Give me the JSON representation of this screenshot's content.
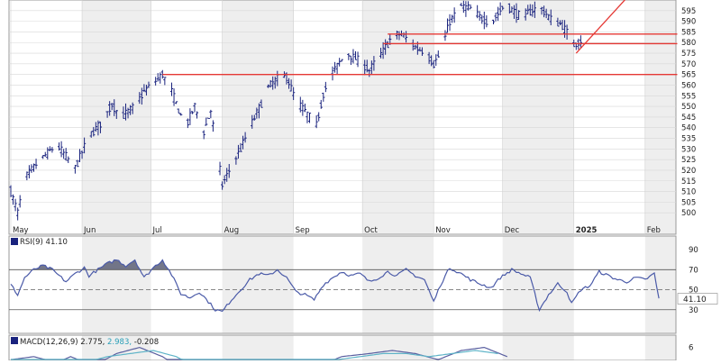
{
  "chart_data": [
    {
      "type": "ohlc",
      "panel": "price",
      "title": "",
      "ylim": [
        495,
        600
      ],
      "y_ticks": [
        500,
        505,
        510,
        515,
        520,
        525,
        530,
        535,
        540,
        545,
        550,
        555,
        560,
        565,
        570,
        575,
        580,
        585,
        590,
        595
      ],
      "x_labels": [
        {
          "label": "May",
          "day": 0
        },
        {
          "label": "Jun",
          "day": 31
        },
        {
          "label": "Jul",
          "day": 61
        },
        {
          "label": "Aug",
          "day": 92
        },
        {
          "label": "Sep",
          "day": 123
        },
        {
          "label": "Oct",
          "day": 153
        },
        {
          "label": "Nov",
          "day": 184
        },
        {
          "label": "Dec",
          "day": 214
        },
        {
          "label": "2025",
          "day": 245
        },
        {
          "label": "Feb",
          "day": 276
        }
      ],
      "bar_color": "#1a237e",
      "anchors": [
        [
          0,
          510
        ],
        [
          3,
          500
        ],
        [
          6,
          516
        ],
        [
          12,
          524
        ],
        [
          20,
          532
        ],
        [
          28,
          521
        ],
        [
          34,
          536
        ],
        [
          40,
          543
        ],
        [
          44,
          551
        ],
        [
          48,
          545
        ],
        [
          54,
          550
        ],
        [
          58,
          557
        ],
        [
          66,
          565
        ],
        [
          70,
          557
        ],
        [
          76,
          540
        ],
        [
          80,
          550
        ],
        [
          84,
          538
        ],
        [
          87,
          548
        ],
        [
          92,
          513
        ],
        [
          96,
          522
        ],
        [
          100,
          530
        ],
        [
          104,
          540
        ],
        [
          108,
          549
        ],
        [
          112,
          559
        ],
        [
          116,
          563
        ],
        [
          120,
          564
        ],
        [
          124,
          553
        ],
        [
          130,
          545
        ],
        [
          133,
          541
        ],
        [
          136,
          556
        ],
        [
          140,
          566
        ],
        [
          146,
          575
        ],
        [
          152,
          571
        ],
        [
          156,
          567
        ],
        [
          162,
          576
        ],
        [
          166,
          583
        ],
        [
          170,
          584
        ],
        [
          174,
          580
        ],
        [
          177,
          577
        ],
        [
          180,
          576
        ],
        [
          184,
          570
        ],
        [
          187,
          575
        ],
        [
          191,
          590
        ],
        [
          196,
          597
        ],
        [
          200,
          596
        ],
        [
          204,
          592
        ],
        [
          209,
          589
        ],
        [
          215,
          598
        ],
        [
          222,
          592
        ],
        [
          230,
          597
        ],
        [
          235,
          591
        ],
        [
          240,
          588
        ],
        [
          243,
          583
        ],
        [
          245,
          579
        ],
        [
          248,
          581
        ]
      ],
      "reference_lines": [
        {
          "y": 565.0,
          "from_day": 66,
          "to_day": 290,
          "color": "#e53935"
        },
        {
          "y": 579.5,
          "from_day": 162,
          "to_day": 290,
          "color": "#e53935"
        },
        {
          "y": 584.0,
          "from_day": 164,
          "to_day": 290,
          "color": "#e53935"
        }
      ],
      "trend_line": {
        "from_day": 246,
        "from_y": 575,
        "to_day": 268,
        "to_y": 601,
        "color": "#e53935"
      }
    },
    {
      "type": "line",
      "panel": "rsi",
      "label": "RSI(9) 41.10",
      "value_label": "41.10",
      "ylim": [
        10,
        100
      ],
      "y_ticks": [
        30,
        50,
        70,
        90
      ],
      "y_tick_labels": [
        "30",
        "50",
        "70",
        "90"
      ],
      "overbought": 70,
      "oversold": 30,
      "midline": 50,
      "line_color": "#4a5aa8",
      "fill_color": "#5c5f75",
      "anchors": [
        [
          0,
          55
        ],
        [
          3,
          45
        ],
        [
          6,
          62
        ],
        [
          10,
          70
        ],
        [
          14,
          74
        ],
        [
          18,
          70
        ],
        [
          22,
          62
        ],
        [
          24,
          58
        ],
        [
          28,
          66
        ],
        [
          32,
          72
        ],
        [
          34,
          64
        ],
        [
          38,
          70
        ],
        [
          42,
          76
        ],
        [
          46,
          80
        ],
        [
          50,
          74
        ],
        [
          54,
          80
        ],
        [
          58,
          62
        ],
        [
          62,
          72
        ],
        [
          66,
          80
        ],
        [
          70,
          65
        ],
        [
          74,
          46
        ],
        [
          78,
          42
        ],
        [
          82,
          48
        ],
        [
          86,
          38
        ],
        [
          89,
          30
        ],
        [
          92,
          28
        ],
        [
          96,
          40
        ],
        [
          100,
          50
        ],
        [
          104,
          60
        ],
        [
          108,
          66
        ],
        [
          112,
          64
        ],
        [
          116,
          70
        ],
        [
          120,
          62
        ],
        [
          124,
          48
        ],
        [
          128,
          45
        ],
        [
          132,
          40
        ],
        [
          136,
          55
        ],
        [
          140,
          62
        ],
        [
          144,
          68
        ],
        [
          148,
          64
        ],
        [
          152,
          66
        ],
        [
          156,
          58
        ],
        [
          160,
          62
        ],
        [
          164,
          68
        ],
        [
          168,
          64
        ],
        [
          172,
          70
        ],
        [
          176,
          64
        ],
        [
          180,
          60
        ],
        [
          184,
          38
        ],
        [
          187,
          55
        ],
        [
          191,
          72
        ],
        [
          196,
          66
        ],
        [
          200,
          60
        ],
        [
          204,
          56
        ],
        [
          209,
          52
        ],
        [
          213,
          62
        ],
        [
          218,
          70
        ],
        [
          222,
          66
        ],
        [
          226,
          62
        ],
        [
          230,
          30
        ],
        [
          234,
          45
        ],
        [
          238,
          56
        ],
        [
          242,
          48
        ],
        [
          244,
          36
        ],
        [
          248,
          50
        ],
        [
          252,
          54
        ],
        [
          256,
          68
        ],
        [
          260,
          64
        ],
        [
          264,
          60
        ],
        [
          268,
          58
        ],
        [
          272,
          62
        ],
        [
          276,
          60
        ],
        [
          280,
          66
        ],
        [
          282,
          41
        ]
      ]
    },
    {
      "type": "line",
      "panel": "macd",
      "label": "MACD(12,26,9) 2.775, 2.983, -0.208",
      "label_parts": {
        "name": "MACD(12,26,9)",
        "macd": "2.775",
        "signal": "2.983",
        "hist": "-0.208"
      },
      "ylim": [
        -10,
        10
      ],
      "y_ticks": [
        6
      ],
      "y_tick_labels": [
        "6"
      ],
      "series": [
        {
          "color": "#5a5fa0",
          "anchors": [
            [
              0,
              2
            ],
            [
              10,
              3
            ],
            [
              20,
              1
            ],
            [
              26,
              3
            ],
            [
              36,
              0
            ],
            [
              46,
              4
            ],
            [
              56,
              6
            ],
            [
              66,
              3
            ],
            [
              74,
              -1
            ],
            [
              84,
              -4
            ],
            [
              92,
              -6
            ],
            [
              104,
              -2
            ],
            [
              116,
              1
            ],
            [
              124,
              0
            ],
            [
              134,
              0
            ],
            [
              144,
              3
            ],
            [
              156,
              4
            ],
            [
              166,
              5
            ],
            [
              176,
              4
            ],
            [
              186,
              2
            ],
            [
              196,
              5
            ],
            [
              206,
              6
            ],
            [
              216,
              3
            ]
          ]
        },
        {
          "color": "#5fb4c8",
          "anchors": [
            [
              0,
              1
            ],
            [
              12,
              2
            ],
            [
              22,
              2
            ],
            [
              32,
              1
            ],
            [
              42,
              3
            ],
            [
              52,
              4
            ],
            [
              62,
              5
            ],
            [
              72,
              3
            ],
            [
              82,
              -1
            ],
            [
              92,
              -3
            ],
            [
              102,
              -3
            ],
            [
              112,
              0
            ],
            [
              122,
              1
            ],
            [
              132,
              1
            ],
            [
              142,
              2
            ],
            [
              152,
              3
            ],
            [
              162,
              4
            ],
            [
              172,
              4
            ],
            [
              182,
              3
            ],
            [
              192,
              4
            ],
            [
              202,
              5
            ],
            [
              212,
              4
            ]
          ]
        }
      ]
    }
  ]
}
